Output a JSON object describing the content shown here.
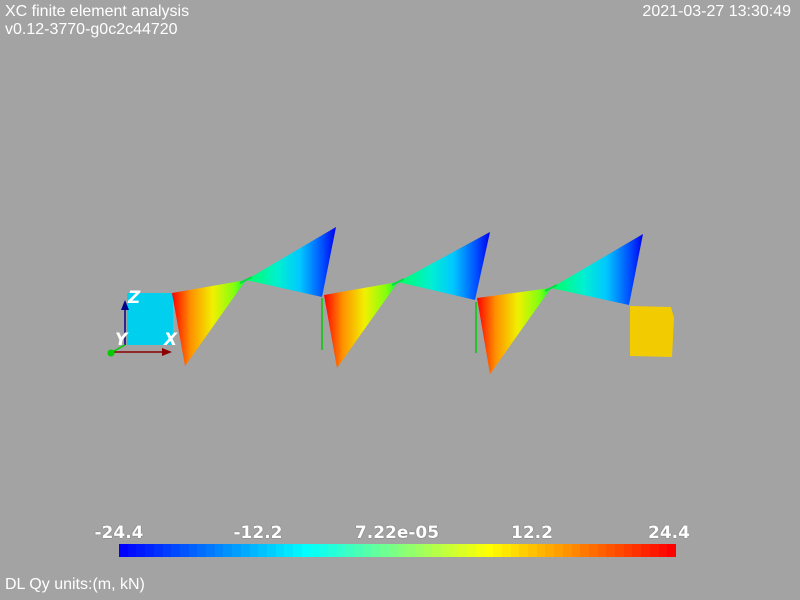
{
  "header": {
    "title": "XC finite element analysis",
    "version": "v0.12-3770-g0c2c44720",
    "timestamp": "2021-03-27 13:30:49"
  },
  "footer": {
    "units_label": "DL Qy units:(m, kN)"
  },
  "axes": {
    "z_label": "Z",
    "y_label": "Y",
    "x_label": "X",
    "x_color": "#8b0000",
    "y_color": "#00cc00",
    "z_color": "#00008b"
  },
  "colorbar": {
    "min": -24.4,
    "max": 24.4,
    "tick_labels": [
      "-24.4",
      "-12.2",
      "7.22e-05",
      "12.2",
      "24.4"
    ],
    "colormap": "jet"
  },
  "colors": {
    "background": "#a3a3a3",
    "text": "#ffffff",
    "left_block": "#00d0ee",
    "right_block": "#f2cc00"
  }
}
